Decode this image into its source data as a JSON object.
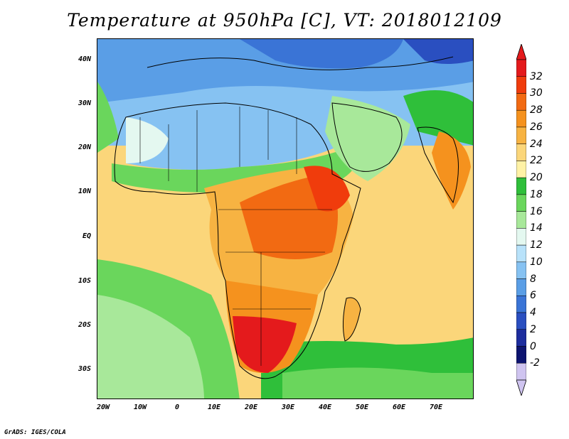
{
  "title": "Temperature at 950hPa [C], VT: 2018012109",
  "credit": "GrADS: IGES/COLA",
  "axes": {
    "lat_labels": [
      "40N",
      "30N",
      "20N",
      "10N",
      "EQ",
      "10S",
      "20S",
      "30S"
    ],
    "lon_labels": [
      "20W",
      "10W",
      "0",
      "10E",
      "20E",
      "30E",
      "40E",
      "50E",
      "60E",
      "70E"
    ]
  },
  "colorbar": {
    "labels": [
      "32",
      "30",
      "28",
      "26",
      "24",
      "22",
      "20",
      "18",
      "16",
      "14",
      "12",
      "10",
      "8",
      "6",
      "4",
      "2",
      "0",
      "-2"
    ],
    "colors": [
      "#e41a1c",
      "#f03c0c",
      "#f26a12",
      "#f5921e",
      "#f7b342",
      "#fbd67a",
      "#fff2a6",
      "#2fbf3a",
      "#6ad65c",
      "#a8e89a",
      "#e4f8f0",
      "#b8e2fa",
      "#86c2f2",
      "#5a9ee6",
      "#3a74d6",
      "#2a4fc0",
      "#1d2d9e",
      "#0d1470",
      "#cfc4f0"
    ],
    "top_triangle_color": "#e41a1c",
    "bottom_triangle_color": "#cfc4f0"
  }
}
